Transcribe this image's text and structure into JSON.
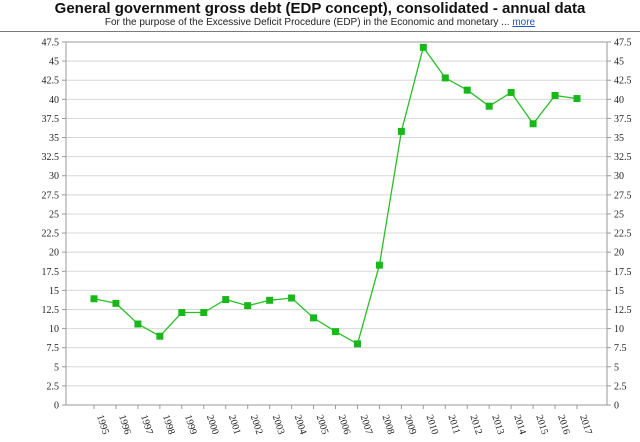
{
  "header": {
    "title": "General government gross debt (EDP concept), consolidated - annual data",
    "subtitle": "For the purpose of the Excessive Deficit Procedure (EDP) in the Economic and monetary ...",
    "more_link": "more"
  },
  "colors": {
    "line": "#27c027",
    "marker": "#19b819",
    "grid": "#d8d8d8",
    "axis": "#9a9a9a",
    "text": "#222222"
  },
  "chart_data": {
    "type": "line",
    "title": "General government gross debt (EDP concept), consolidated - annual data",
    "xlabel": "",
    "ylabel": "",
    "grid": true,
    "legend": "none",
    "ylim": [
      0,
      47.5
    ],
    "yticks": [
      "0",
      "2.5",
      "5",
      "7.5",
      "10",
      "12.5",
      "15",
      "17.5",
      "20",
      "22.5",
      "25",
      "27.5",
      "30",
      "32.5",
      "35",
      "37.5",
      "40",
      "42.5",
      "45",
      "47.5"
    ],
    "categories": [
      "1995",
      "1996",
      "1997",
      "1998",
      "1999",
      "2000",
      "2001",
      "2002",
      "2003",
      "2004",
      "2005",
      "2006",
      "2007",
      "2008",
      "2009",
      "2010",
      "2011",
      "2012",
      "2013",
      "2014",
      "2015",
      "2016",
      "2017"
    ],
    "series": [
      {
        "name": "General government gross debt",
        "values": [
          13.9,
          13.3,
          10.6,
          9.0,
          12.1,
          12.1,
          13.8,
          13.0,
          13.7,
          14.0,
          11.4,
          9.6,
          8.0,
          18.3,
          35.8,
          46.8,
          42.8,
          41.2,
          39.1,
          40.9,
          36.8,
          40.5,
          40.1
        ]
      }
    ]
  }
}
